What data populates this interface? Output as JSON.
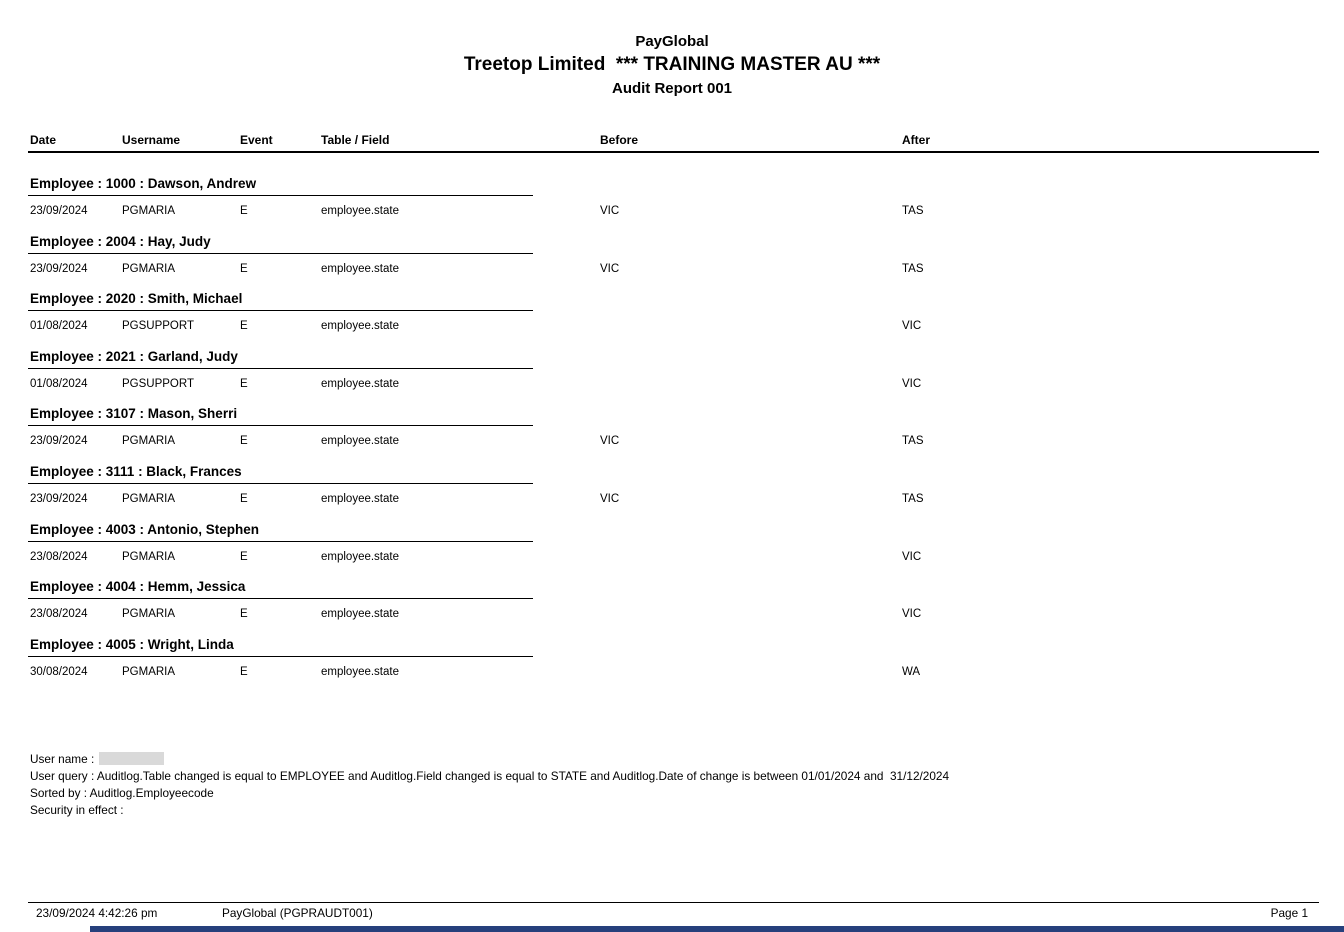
{
  "report": {
    "company": "PayGlobal",
    "title": "Treetop Limited  *** TRAINING MASTER AU ***",
    "subtitle": "Audit Report 001",
    "columns": [
      "Date",
      "Username",
      "Event",
      "Table / Field",
      "Before",
      "After"
    ],
    "groups": [
      {
        "header": "Employee : 1000 : Dawson, Andrew",
        "rows": [
          {
            "date": "23/09/2024",
            "username": "PGMARIA",
            "event": "E",
            "table_field": "employee.state",
            "before": "VIC",
            "after": "TAS"
          }
        ]
      },
      {
        "header": "Employee : 2004 : Hay, Judy",
        "rows": [
          {
            "date": "23/09/2024",
            "username": "PGMARIA",
            "event": "E",
            "table_field": "employee.state",
            "before": "VIC",
            "after": "TAS"
          }
        ]
      },
      {
        "header": "Employee : 2020 : Smith, Michael",
        "rows": [
          {
            "date": "01/08/2024",
            "username": "PGSUPPORT",
            "event": "E",
            "table_field": "employee.state",
            "before": "",
            "after": "VIC"
          }
        ]
      },
      {
        "header": "Employee : 2021 : Garland, Judy",
        "rows": [
          {
            "date": "01/08/2024",
            "username": "PGSUPPORT",
            "event": "E",
            "table_field": "employee.state",
            "before": "",
            "after": "VIC"
          }
        ]
      },
      {
        "header": "Employee : 3107 : Mason, Sherri",
        "rows": [
          {
            "date": "23/09/2024",
            "username": "PGMARIA",
            "event": "E",
            "table_field": "employee.state",
            "before": "VIC",
            "after": "TAS"
          }
        ]
      },
      {
        "header": "Employee : 3111 : Black, Frances",
        "rows": [
          {
            "date": "23/09/2024",
            "username": "PGMARIA",
            "event": "E",
            "table_field": "employee.state",
            "before": "VIC",
            "after": "TAS"
          }
        ]
      },
      {
        "header": "Employee : 4003 : Antonio, Stephen",
        "rows": [
          {
            "date": "23/08/2024",
            "username": "PGMARIA",
            "event": "E",
            "table_field": "employee.state",
            "before": "",
            "after": "VIC"
          }
        ]
      },
      {
        "header": "Employee : 4004 : Hemm, Jessica",
        "rows": [
          {
            "date": "23/08/2024",
            "username": "PGMARIA",
            "event": "E",
            "table_field": "employee.state",
            "before": "",
            "after": "VIC"
          }
        ]
      },
      {
        "header": "Employee : 4005 : Wright, Linda",
        "rows": [
          {
            "date": "30/08/2024",
            "username": "PGMARIA",
            "event": "E",
            "table_field": "employee.state",
            "before": "",
            "after": "WA"
          }
        ]
      }
    ],
    "summary": {
      "user_name_line": "User name :",
      "user_query_line": "User query : Auditlog.Table changed is equal to EMPLOYEE and Auditlog.Field changed is equal to STATE and Auditlog.Date of change is between 01/01/2024 and  31/12/2024",
      "sorted_by_line": "Sorted by : Auditlog.Employeecode",
      "security_line": "Security in effect :"
    },
    "page_footer": {
      "datetime": "23/09/2024 4:42:26 pm",
      "source": "PayGlobal (PGPRAUDT001)",
      "page": "Page 1"
    },
    "colors": {
      "text": "#000000",
      "redaction_gray": "#d9d9d9",
      "bottom_strip_navy": "#26407c"
    }
  }
}
